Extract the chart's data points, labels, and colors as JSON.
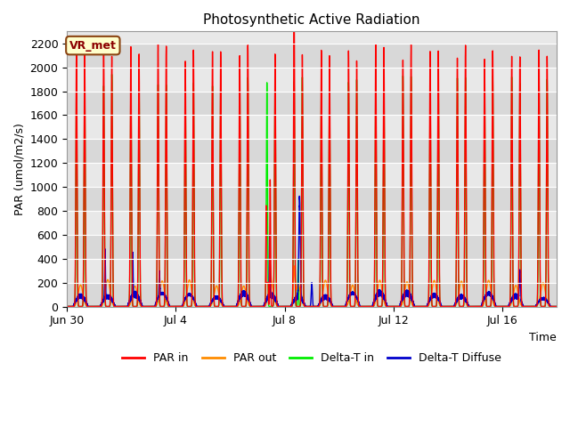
{
  "title": "Photosynthetic Active Radiation",
  "ylabel": "PAR (umol/m2/s)",
  "xlabel": "Time",
  "ylim": [
    0,
    2300
  ],
  "yticks": [
    0,
    200,
    400,
    600,
    800,
    1000,
    1200,
    1400,
    1600,
    1800,
    2000,
    2200
  ],
  "xtick_labels": [
    "Jun 30",
    "Jul 4",
    "Jul 8",
    "Jul 12",
    "Jul 16"
  ],
  "xtick_positions": [
    0,
    4,
    8,
    12,
    16
  ],
  "legend_labels": [
    "PAR in",
    "PAR out",
    "Delta-T in",
    "Delta-T Diffuse"
  ],
  "line_colors": [
    "#ff0000",
    "#ff8c00",
    "#00ee00",
    "#0000cc"
  ],
  "bg_color": "#ffffff",
  "plot_bg": "#e8e8e8",
  "label_box_text": "VR_met",
  "label_box_color": "#ffffcc",
  "label_box_edge": "#8b4513",
  "n_days": 18,
  "pts_per_day": 480
}
